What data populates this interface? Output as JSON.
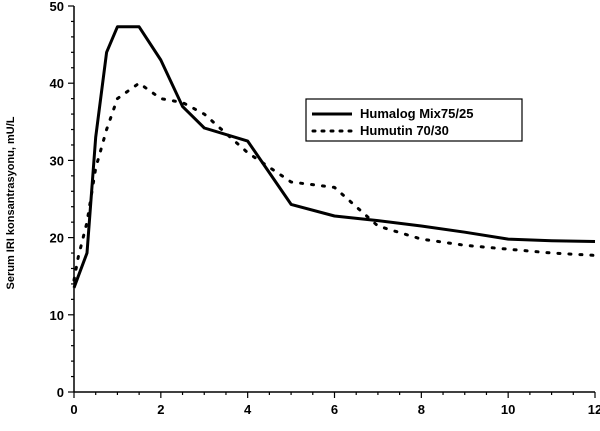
{
  "chart_data": {
    "type": "line",
    "title": "",
    "xlabel": "",
    "ylabel": "Serum IRI konsantrasyonu, mU/L",
    "xlim": [
      0,
      12
    ],
    "ylim": [
      0,
      50
    ],
    "x_ticks": [
      0,
      2,
      4,
      6,
      8,
      10,
      12
    ],
    "y_ticks": [
      0,
      10,
      20,
      30,
      40,
      50
    ],
    "grid": false,
    "legend_position": "right",
    "series": [
      {
        "name": "Humalog Mix75/25",
        "style": "solid",
        "color": "#000000",
        "x": [
          0,
          0.1,
          0.3,
          0.5,
          0.75,
          1.0,
          1.5,
          2.0,
          2.5,
          3.0,
          4.0,
          5.0,
          6.0,
          7.0,
          8.0,
          9.0,
          10.0,
          11.0,
          12.0
        ],
        "y": [
          13.5,
          15,
          18,
          33,
          44,
          47.3,
          47.3,
          43,
          37,
          34.2,
          32.5,
          24.3,
          22.8,
          22.2,
          21.5,
          20.7,
          19.8,
          19.6,
          19.5
        ]
      },
      {
        "name": "Humutin 70/30",
        "style": "dotted",
        "color": "#000000",
        "x": [
          0,
          0.1,
          0.3,
          0.5,
          0.75,
          1.0,
          1.5,
          2.0,
          2.5,
          3.0,
          4.0,
          5.0,
          6.0,
          7.0,
          8.0,
          9.0,
          10.0,
          11.0,
          12.0
        ],
        "y": [
          14.5,
          17.5,
          22,
          29,
          34,
          38,
          40,
          38,
          37.5,
          36,
          31,
          27.2,
          26.5,
          21.5,
          19.8,
          19,
          18.5,
          18,
          17.7
        ]
      }
    ]
  }
}
